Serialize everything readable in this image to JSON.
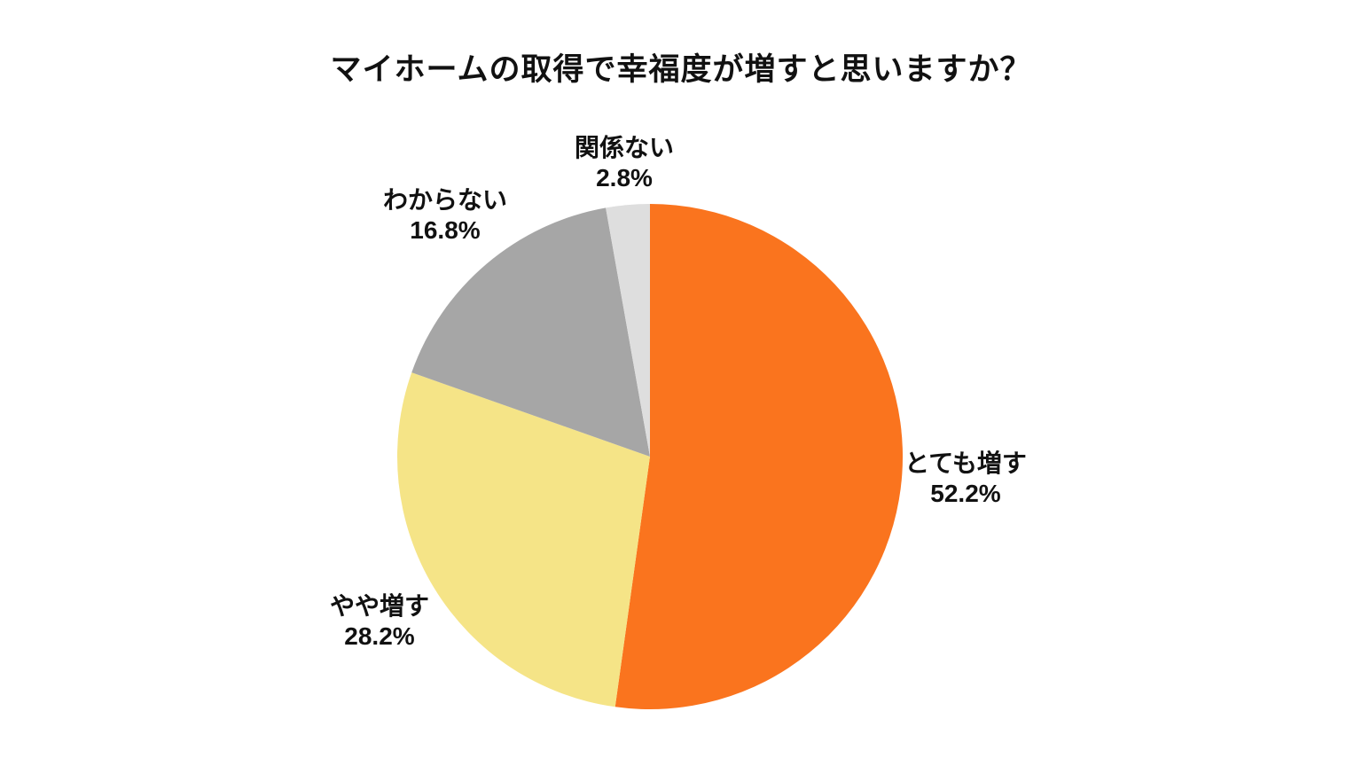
{
  "chart_data": {
    "type": "pie",
    "title": "マイホームの取得で幸福度が増すと思いますか？",
    "slices": [
      {
        "label": "とても増す",
        "value": 52.2,
        "percent_label": "52.2%",
        "color": "#FA741E"
      },
      {
        "label": "やや増す",
        "value": 28.2,
        "percent_label": "28.2%",
        "color": "#F5E487"
      },
      {
        "label": "わからない",
        "value": 16.8,
        "percent_label": "16.8%",
        "color": "#A6A6A6"
      },
      {
        "label": "関係ない",
        "value": 2.8,
        "percent_label": "2.8%",
        "color": "#DEDEDE"
      }
    ],
    "layout": {
      "start_angle_deg": -90,
      "direction": "clockwise",
      "center": [
        733,
        515
      ],
      "radius": 285,
      "label_radii": [
        357,
        357,
        357,
        332
      ],
      "legend": "none",
      "background": "#ffffff",
      "text_color": "#111111"
    }
  }
}
